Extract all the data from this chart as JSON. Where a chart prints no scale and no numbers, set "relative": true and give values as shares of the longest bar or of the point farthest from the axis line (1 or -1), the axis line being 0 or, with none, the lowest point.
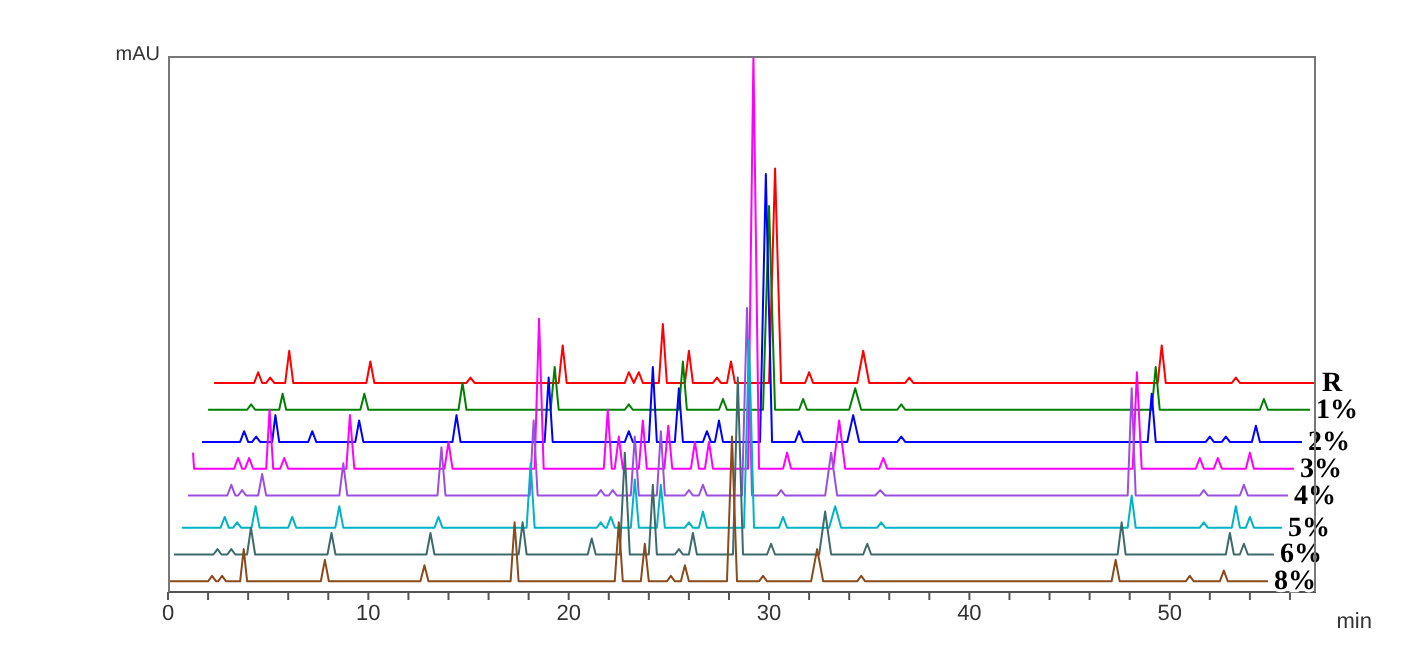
{
  "chart_data": {
    "type": "line",
    "relative": true,
    "ylabel": "mAU",
    "xlabel": "min",
    "xlim": [
      0,
      57.3
    ],
    "xticks": [
      0,
      {
        "value": 2,
        "label": null
      },
      {
        "value": 4,
        "label": null
      },
      {
        "value": 6,
        "label": null
      },
      {
        "value": 8,
        "label": null
      },
      10,
      {
        "value": 12,
        "label": null
      },
      {
        "value": 14,
        "label": null
      },
      {
        "value": 16,
        "label": null
      },
      {
        "value": 18,
        "label": null
      },
      20,
      {
        "value": 22,
        "label": null
      },
      {
        "value": 24,
        "label": null
      },
      {
        "value": 26,
        "label": null
      },
      {
        "value": 28,
        "label": null
      },
      30,
      {
        "value": 32,
        "label": null
      },
      {
        "value": 34,
        "label": null
      },
      {
        "value": 36,
        "label": null
      },
      {
        "value": 38,
        "label": null
      },
      40,
      {
        "value": 42,
        "label": null
      },
      {
        "value": 44,
        "label": null
      },
      {
        "value": 46,
        "label": null
      },
      {
        "value": 48,
        "label": null
      },
      50,
      {
        "value": 52,
        "label": null
      },
      {
        "value": 54,
        "label": null
      },
      {
        "value": 56,
        "label": null
      }
    ],
    "series": [
      {
        "name": "R",
        "color": "#ff0000",
        "x": [
          2.3,
          4.3,
          4.5,
          4.7,
          4.9,
          5.1,
          5.3,
          5.85,
          6.05,
          6.25,
          9.9,
          10.1,
          10.3,
          14.9,
          15.1,
          15.3,
          19.5,
          19.7,
          19.9,
          22.8,
          23.0,
          23.25,
          23.5,
          23.7,
          24.5,
          24.7,
          24.9,
          25.8,
          26.0,
          26.2,
          27.2,
          27.4,
          27.6,
          27.9,
          28.1,
          28.3,
          30.0,
          30.3,
          30.6,
          31.8,
          32.0,
          32.2,
          34.4,
          34.7,
          35.0,
          36.8,
          37.0,
          37.2,
          49.4,
          49.6,
          49.8,
          53.1,
          53.3,
          53.5,
          57.3
        ],
        "values": [
          0.39,
          0.39,
          0.41,
          0.39,
          0.39,
          0.4,
          0.39,
          0.39,
          0.45,
          0.39,
          0.39,
          0.43,
          0.39,
          0.39,
          0.4,
          0.39,
          0.39,
          0.46,
          0.39,
          0.39,
          0.41,
          0.39,
          0.41,
          0.39,
          0.39,
          0.5,
          0.39,
          0.39,
          0.45,
          0.39,
          0.39,
          0.4,
          0.39,
          0.39,
          0.43,
          0.39,
          0.39,
          0.79,
          0.39,
          0.39,
          0.41,
          0.39,
          0.39,
          0.45,
          0.39,
          0.39,
          0.4,
          0.39,
          0.39,
          0.46,
          0.39,
          0.39,
          0.4,
          0.39,
          0.39
        ]
      },
      {
        "name": "1%",
        "color": "#008000",
        "x": [
          2.0,
          3.95,
          4.15,
          4.35,
          5.55,
          5.72,
          5.9,
          9.6,
          9.8,
          10.0,
          14.5,
          14.7,
          14.9,
          19.1,
          19.3,
          19.5,
          22.8,
          23.0,
          23.2,
          25.5,
          25.7,
          25.9,
          27.5,
          27.7,
          27.9,
          29.7,
          30.0,
          30.3,
          31.5,
          31.7,
          31.9,
          34.0,
          34.3,
          34.6,
          36.4,
          36.6,
          36.8,
          49.1,
          49.3,
          49.5,
          54.5,
          54.7,
          54.9,
          57.0
        ],
        "values": [
          0.34,
          0.34,
          0.35,
          0.34,
          0.34,
          0.37,
          0.34,
          0.34,
          0.37,
          0.34,
          0.34,
          0.39,
          0.34,
          0.34,
          0.42,
          0.34,
          0.34,
          0.35,
          0.34,
          0.34,
          0.43,
          0.34,
          0.34,
          0.36,
          0.34,
          0.34,
          0.72,
          0.34,
          0.34,
          0.36,
          0.34,
          0.34,
          0.38,
          0.34,
          0.34,
          0.35,
          0.34,
          0.34,
          0.42,
          0.34,
          0.34,
          0.36,
          0.34,
          0.34
        ]
      },
      {
        "name": "2%",
        "color": "#0000ff",
        "x": [
          1.7,
          3.6,
          3.8,
          4.0,
          4.2,
          4.4,
          4.6,
          5.2,
          5.36,
          5.55,
          7.0,
          7.2,
          7.4,
          9.35,
          9.54,
          9.75,
          14.2,
          14.4,
          14.6,
          18.8,
          19.0,
          19.2,
          22.8,
          23.0,
          23.2,
          24.0,
          24.2,
          24.4,
          25.3,
          25.5,
          25.7,
          26.7,
          26.9,
          27.1,
          27.3,
          27.5,
          27.7,
          29.55,
          29.84,
          30.15,
          31.3,
          31.5,
          31.7,
          33.9,
          34.2,
          34.5,
          36.4,
          36.6,
          36.8,
          48.9,
          49.1,
          49.3,
          51.8,
          52.0,
          52.2,
          52.6,
          52.8,
          53.0,
          54.1,
          54.3,
          54.5,
          56.6
        ],
        "values": [
          0.28,
          0.28,
          0.3,
          0.28,
          0.28,
          0.29,
          0.28,
          0.28,
          0.33,
          0.28,
          0.28,
          0.3,
          0.28,
          0.28,
          0.32,
          0.28,
          0.28,
          0.33,
          0.28,
          0.28,
          0.4,
          0.28,
          0.28,
          0.3,
          0.28,
          0.28,
          0.42,
          0.28,
          0.28,
          0.38,
          0.28,
          0.28,
          0.3,
          0.28,
          0.28,
          0.32,
          0.28,
          0.28,
          0.78,
          0.28,
          0.28,
          0.3,
          0.28,
          0.28,
          0.33,
          0.28,
          0.28,
          0.29,
          0.28,
          0.28,
          0.37,
          0.28,
          0.28,
          0.29,
          0.28,
          0.28,
          0.29,
          0.28,
          0.28,
          0.31,
          0.28,
          0.28
        ]
      },
      {
        "name": "3%",
        "color": "#ff00ff",
        "x": [
          1.25,
          1.3,
          1.4,
          3.3,
          3.5,
          3.7,
          3.85,
          4.05,
          4.25,
          4.9,
          5.07,
          5.25,
          5.6,
          5.8,
          6.0,
          8.9,
          9.08,
          9.3,
          13.8,
          14.0,
          14.2,
          18.3,
          18.52,
          18.75,
          21.75,
          21.95,
          22.15,
          22.3,
          22.5,
          22.7,
          23.5,
          23.7,
          23.9,
          24.77,
          24.97,
          25.17,
          26.1,
          26.3,
          26.5,
          26.8,
          27.0,
          27.2,
          28.95,
          29.22,
          29.5,
          30.7,
          30.9,
          31.1,
          33.2,
          33.5,
          33.8,
          35.5,
          35.7,
          35.9,
          48.15,
          48.36,
          48.6,
          51.3,
          51.5,
          51.7,
          52.2,
          52.4,
          52.6,
          53.8,
          54.0,
          54.2,
          56.2
        ],
        "values": [
          0.26,
          0.23,
          0.23,
          0.23,
          0.25,
          0.23,
          0.23,
          0.25,
          0.23,
          0.23,
          0.34,
          0.23,
          0.23,
          0.25,
          0.23,
          0.23,
          0.33,
          0.23,
          0.23,
          0.28,
          0.23,
          0.23,
          0.51,
          0.23,
          0.23,
          0.34,
          0.23,
          0.23,
          0.29,
          0.23,
          0.23,
          0.32,
          0.23,
          0.23,
          0.31,
          0.23,
          0.23,
          0.28,
          0.23,
          0.23,
          0.28,
          0.23,
          0.23,
          1,
          0.23,
          0.23,
          0.26,
          0.23,
          0.23,
          0.32,
          0.23,
          0.23,
          0.25,
          0.23,
          0.23,
          0.41,
          0.23,
          0.23,
          0.25,
          0.23,
          0.23,
          0.25,
          0.23,
          0.23,
          0.26,
          0.23,
          0.23
        ]
      },
      {
        "name": "4%",
        "color": "#9b4fe0",
        "x": [
          1.0,
          2.96,
          3.16,
          3.36,
          3.5,
          3.7,
          3.9,
          4.5,
          4.7,
          4.9,
          8.55,
          8.75,
          8.95,
          13.45,
          13.65,
          13.85,
          18.05,
          18.25,
          18.45,
          21.4,
          21.6,
          21.8,
          22.0,
          22.2,
          22.4,
          23.1,
          23.3,
          23.5,
          24.4,
          24.6,
          24.8,
          25.8,
          26.0,
          26.2,
          26.5,
          26.7,
          26.9,
          28.65,
          28.9,
          29.15,
          30.4,
          30.6,
          30.8,
          32.8,
          33.1,
          33.4,
          35.3,
          35.55,
          35.8,
          47.9,
          48.1,
          48.3,
          51.5,
          51.7,
          51.9,
          53.5,
          53.7,
          53.9,
          55.9
        ],
        "values": [
          0.18,
          0.18,
          0.2,
          0.18,
          0.18,
          0.19,
          0.18,
          0.18,
          0.22,
          0.18,
          0.18,
          0.24,
          0.18,
          0.18,
          0.27,
          0.18,
          0.18,
          0.32,
          0.18,
          0.18,
          0.19,
          0.18,
          0.18,
          0.19,
          0.18,
          0.18,
          0.29,
          0.18,
          0.18,
          0.3,
          0.18,
          0.18,
          0.19,
          0.18,
          0.18,
          0.2,
          0.18,
          0.18,
          0.53,
          0.18,
          0.18,
          0.19,
          0.18,
          0.18,
          0.26,
          0.18,
          0.18,
          0.19,
          0.18,
          0.18,
          0.38,
          0.18,
          0.18,
          0.19,
          0.18,
          0.18,
          0.2,
          0.18,
          0.18
        ]
      },
      {
        "name": "5%",
        "color": "#00b4c8",
        "x": [
          0.7,
          2.63,
          2.83,
          3.03,
          3.25,
          3.45,
          3.65,
          4.17,
          4.37,
          4.57,
          6.0,
          6.2,
          6.4,
          8.35,
          8.55,
          8.75,
          13.3,
          13.5,
          13.7,
          17.9,
          18.1,
          18.3,
          21.4,
          21.6,
          21.8,
          21.9,
          22.1,
          22.3,
          23.1,
          23.3,
          23.5,
          24.4,
          24.6,
          24.8,
          25.8,
          26.0,
          26.2,
          26.5,
          26.7,
          26.9,
          28.75,
          29.0,
          29.25,
          30.5,
          30.7,
          30.9,
          33.0,
          33.3,
          33.6,
          35.4,
          35.6,
          35.8,
          47.9,
          48.1,
          48.3,
          51.5,
          51.7,
          51.9,
          53.1,
          53.3,
          53.5,
          53.8,
          54.0,
          54.2,
          55.6
        ],
        "values": [
          0.12,
          0.12,
          0.14,
          0.12,
          0.12,
          0.13,
          0.12,
          0.12,
          0.16,
          0.12,
          0.12,
          0.14,
          0.12,
          0.12,
          0.16,
          0.12,
          0.12,
          0.14,
          0.12,
          0.12,
          0.24,
          0.12,
          0.12,
          0.13,
          0.12,
          0.12,
          0.14,
          0.12,
          0.12,
          0.21,
          0.12,
          0.12,
          0.2,
          0.12,
          0.12,
          0.13,
          0.12,
          0.12,
          0.15,
          0.12,
          0.12,
          0.47,
          0.12,
          0.12,
          0.14,
          0.12,
          0.12,
          0.16,
          0.12,
          0.12,
          0.13,
          0.12,
          0.12,
          0.18,
          0.12,
          0.12,
          0.13,
          0.12,
          0.12,
          0.16,
          0.12,
          0.12,
          0.14,
          0.12,
          0.12
        ]
      },
      {
        "name": "6%",
        "color": "#3d6b6b",
        "x": [
          0.3,
          2.27,
          2.47,
          2.67,
          2.96,
          3.16,
          3.36,
          3.95,
          4.14,
          4.35,
          7.96,
          8.16,
          8.36,
          12.9,
          13.1,
          13.3,
          17.5,
          17.7,
          17.9,
          20.95,
          21.15,
          21.35,
          22.55,
          22.8,
          23.05,
          24.0,
          24.2,
          24.4,
          25.3,
          25.5,
          25.7,
          26.0,
          26.2,
          26.4,
          28.2,
          28.44,
          28.7,
          29.9,
          30.1,
          30.3,
          32.5,
          32.8,
          33.1,
          34.7,
          34.9,
          35.1,
          47.4,
          47.6,
          47.8,
          52.8,
          53.0,
          53.2,
          53.5,
          53.7,
          53.9,
          55.2
        ],
        "values": [
          0.07,
          0.07,
          0.08,
          0.07,
          0.07,
          0.08,
          0.07,
          0.07,
          0.12,
          0.07,
          0.07,
          0.11,
          0.07,
          0.07,
          0.11,
          0.07,
          0.07,
          0.13,
          0.07,
          0.07,
          0.1,
          0.07,
          0.07,
          0.26,
          0.07,
          0.07,
          0.2,
          0.07,
          0.07,
          0.08,
          0.07,
          0.07,
          0.11,
          0.07,
          0.07,
          0.4,
          0.07,
          0.07,
          0.09,
          0.07,
          0.07,
          0.15,
          0.07,
          0.07,
          0.09,
          0.07,
          0.07,
          0.13,
          0.07,
          0.07,
          0.11,
          0.07,
          0.07,
          0.09,
          0.07,
          0.07
        ]
      },
      {
        "name": "8%",
        "color": "#8b4a1c",
        "x": [
          0.0,
          2.0,
          2.2,
          2.4,
          2.5,
          2.7,
          2.9,
          3.6,
          3.78,
          3.95,
          7.63,
          7.83,
          8.03,
          12.6,
          12.8,
          13.0,
          17.1,
          17.3,
          17.5,
          22.3,
          22.5,
          22.7,
          23.6,
          23.8,
          24.0,
          24.9,
          25.1,
          25.3,
          25.6,
          25.8,
          26.0,
          27.9,
          28.15,
          28.4,
          29.5,
          29.7,
          29.9,
          32.1,
          32.4,
          32.7,
          34.4,
          34.6,
          34.8,
          47.1,
          47.3,
          47.5,
          50.8,
          51.0,
          51.2,
          52.5,
          52.7,
          52.9,
          54.9
        ],
        "values": [
          0.02,
          0.02,
          0.03,
          0.02,
          0.02,
          0.03,
          0.02,
          0.02,
          0.08,
          0.02,
          0.02,
          0.06,
          0.02,
          0.02,
          0.05,
          0.02,
          0.02,
          0.13,
          0.02,
          0.02,
          0.13,
          0.02,
          0.02,
          0.09,
          0.02,
          0.02,
          0.03,
          0.02,
          0.02,
          0.05,
          0.02,
          0.02,
          0.29,
          0.02,
          0.02,
          0.03,
          0.02,
          0.02,
          0.08,
          0.02,
          0.02,
          0.03,
          0.02,
          0.02,
          0.06,
          0.02,
          0.02,
          0.03,
          0.02,
          0.02,
          0.04,
          0.02,
          0.02
        ]
      }
    ]
  }
}
